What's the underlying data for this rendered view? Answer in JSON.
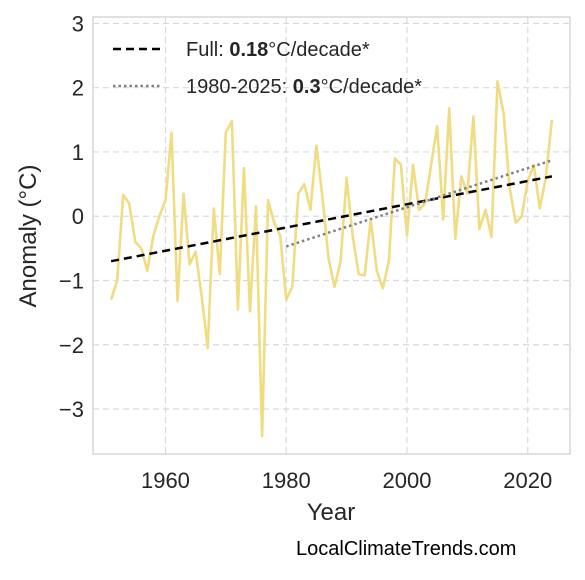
{
  "chart_data": {
    "type": "line",
    "xlabel": "Year",
    "ylabel": "Anomaly (°C)",
    "xlim": [
      1948,
      2027
    ],
    "ylim": [
      -3.7,
      3.1
    ],
    "xticks": [
      1960,
      1980,
      2000,
      2020
    ],
    "yticks": [
      -3,
      -2,
      -1,
      0,
      1,
      2,
      3
    ],
    "grid": true,
    "legend_position": "top-left",
    "series": [
      {
        "color": "#f0dc82",
        "x": [
          1951,
          1952,
          1953,
          1954,
          1955,
          1956,
          1957,
          1958,
          1959,
          1960,
          1961,
          1962,
          1963,
          1964,
          1965,
          1966,
          1967,
          1968,
          1969,
          1970,
          1971,
          1972,
          1973,
          1974,
          1975,
          1976,
          1977,
          1978,
          1979,
          1980,
          1981,
          1982,
          1983,
          1984,
          1985,
          1986,
          1987,
          1988,
          1989,
          1990,
          1991,
          1992,
          1993,
          1994,
          1995,
          1996,
          1997,
          1998,
          1999,
          2000,
          2001,
          2002,
          2003,
          2004,
          2005,
          2006,
          2007,
          2008,
          2009,
          2010,
          2011,
          2012,
          2013,
          2014,
          2015,
          2016,
          2017,
          2018,
          2019,
          2020,
          2021,
          2022,
          2023,
          2024
        ],
        "y": [
          -1.3,
          -1.0,
          0.33,
          0.2,
          -0.4,
          -0.5,
          -0.85,
          -0.3,
          0.0,
          0.25,
          1.3,
          -1.32,
          0.35,
          -0.75,
          -0.55,
          -1.25,
          -2.05,
          0.12,
          -0.9,
          1.3,
          1.48,
          -1.45,
          0.75,
          -1.48,
          0.15,
          -3.42,
          0.25,
          -0.1,
          -0.3,
          -1.3,
          -1.1,
          0.35,
          0.5,
          0.1,
          1.1,
          0.3,
          -0.65,
          -1.1,
          -0.7,
          0.6,
          -0.3,
          -0.9,
          -0.92,
          -0.05,
          -0.85,
          -1.12,
          -0.7,
          0.9,
          0.8,
          -0.3,
          0.8,
          0.1,
          0.2,
          0.8,
          1.4,
          -0.05,
          1.68,
          -0.35,
          0.62,
          0.35,
          1.55,
          -0.2,
          0.1,
          -0.32,
          2.1,
          1.6,
          0.45,
          -0.1,
          0.0,
          0.55,
          0.8,
          0.12,
          0.6,
          1.5
        ]
      }
    ],
    "trends": [
      {
        "style": "dashed",
        "color": "#000000",
        "x": [
          1951,
          2024
        ],
        "y": [
          -0.7,
          0.62
        ]
      },
      {
        "style": "dotted",
        "color": "#808080",
        "x": [
          1980,
          2024
        ],
        "y": [
          -0.47,
          0.87
        ]
      }
    ],
    "legend": [
      {
        "prefix": "Full: ",
        "value": "0.18",
        "suffix": "°C/decade*",
        "style": "dashed",
        "color": "#000000"
      },
      {
        "prefix": "1980-2025: ",
        "value": "0.3",
        "suffix": "°C/decade*",
        "style": "dotted",
        "color": "#808080"
      }
    ]
  },
  "credit": "LocalClimateTrends.com"
}
